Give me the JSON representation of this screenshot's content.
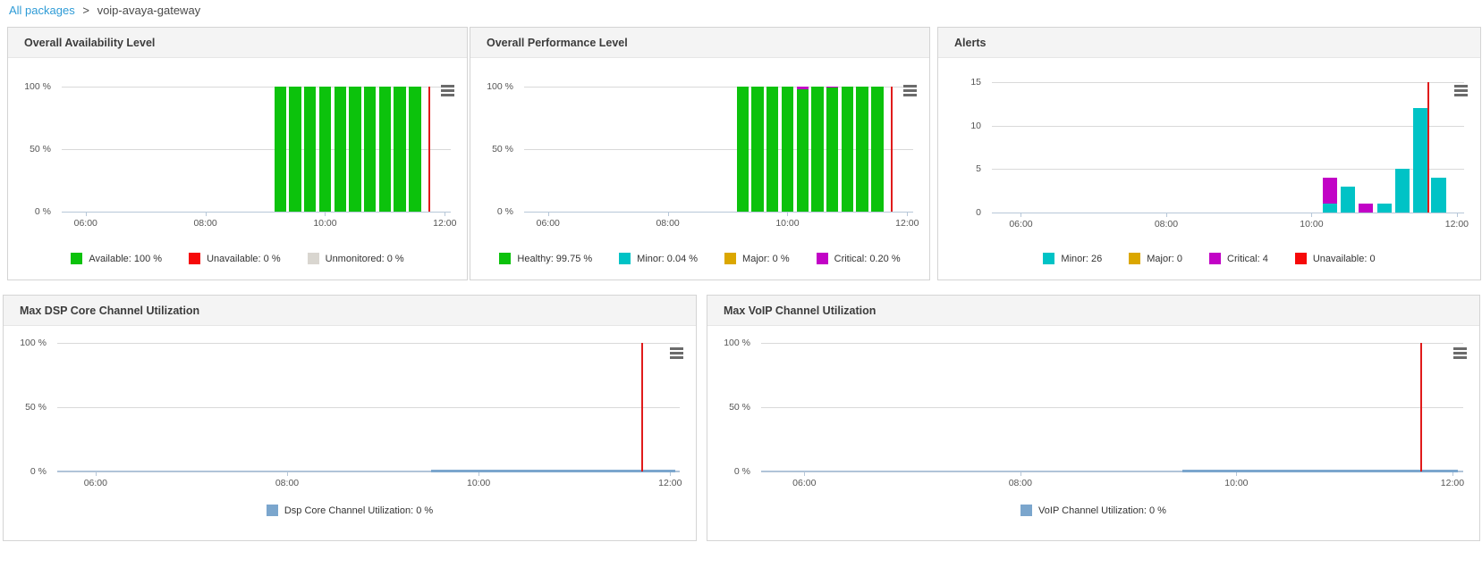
{
  "breadcrumb": {
    "link": "All packages",
    "separator": ">",
    "current": "voip-avaya-gateway"
  },
  "colors": {
    "available_green": "#0cc20c",
    "unavailable_red": "#f60909",
    "unmonitored_gray": "#d9d6d0",
    "minor_cyan": "#00c3c6",
    "major_gold": "#dba700",
    "critical_magenta": "#c203c6",
    "utilization_blue": "#7ba6cd",
    "utilization_blue_thin": "#aac1d8",
    "now_line_red": "#e01b1b",
    "axis_line": "#b7c7d8",
    "gridline": "#d9d9d9",
    "link_blue": "#2e9bd6"
  },
  "chart_data": [
    {
      "id": "overall-availability",
      "title": "Overall Availability Level",
      "type": "bar",
      "x_domain": [
        5.6,
        12.1
      ],
      "xticks": [
        {
          "t": 6,
          "label": "06:00"
        },
        {
          "t": 8,
          "label": "08:00"
        },
        {
          "t": 10,
          "label": "10:00"
        },
        {
          "t": 12,
          "label": "12:00"
        }
      ],
      "yticks": [
        {
          "v": 0,
          "label": "0 %"
        },
        {
          "v": 50,
          "label": "50 %"
        },
        {
          "v": 100,
          "label": "100 %"
        }
      ],
      "ymax": 100,
      "bar_slot_hours": 0.25,
      "now": 11.72,
      "bars": [
        {
          "time": "09:15",
          "t": 9.25,
          "segments": [
            {
              "color": "available_green",
              "value": 100
            }
          ]
        },
        {
          "time": "09:30",
          "t": 9.5,
          "segments": [
            {
              "color": "available_green",
              "value": 100
            }
          ]
        },
        {
          "time": "09:45",
          "t": 9.75,
          "segments": [
            {
              "color": "available_green",
              "value": 100
            }
          ]
        },
        {
          "time": "10:00",
          "t": 10.0,
          "segments": [
            {
              "color": "available_green",
              "value": 100
            }
          ]
        },
        {
          "time": "10:15",
          "t": 10.25,
          "segments": [
            {
              "color": "available_green",
              "value": 100
            }
          ]
        },
        {
          "time": "10:30",
          "t": 10.5,
          "segments": [
            {
              "color": "available_green",
              "value": 100
            }
          ]
        },
        {
          "time": "10:45",
          "t": 10.75,
          "segments": [
            {
              "color": "available_green",
              "value": 100
            }
          ]
        },
        {
          "time": "11:00",
          "t": 11.0,
          "segments": [
            {
              "color": "available_green",
              "value": 100
            }
          ]
        },
        {
          "time": "11:15",
          "t": 11.25,
          "segments": [
            {
              "color": "available_green",
              "value": 100
            }
          ]
        },
        {
          "time": "11:30",
          "t": 11.5,
          "segments": [
            {
              "color": "available_green",
              "value": 100
            }
          ]
        }
      ],
      "legend": [
        {
          "color": "available_green",
          "label": "Available: 100 %"
        },
        {
          "color": "unavailable_red",
          "label": "Unavailable: 0 %"
        },
        {
          "color": "unmonitored_gray",
          "label": "Unmonitored: 0 %"
        }
      ]
    },
    {
      "id": "overall-performance",
      "title": "Overall Performance Level",
      "type": "bar",
      "x_domain": [
        5.6,
        12.1
      ],
      "xticks": [
        {
          "t": 6,
          "label": "06:00"
        },
        {
          "t": 8,
          "label": "08:00"
        },
        {
          "t": 10,
          "label": "10:00"
        },
        {
          "t": 12,
          "label": "12:00"
        }
      ],
      "yticks": [
        {
          "v": 0,
          "label": "0 %"
        },
        {
          "v": 50,
          "label": "50 %"
        },
        {
          "v": 100,
          "label": "100 %"
        }
      ],
      "ymax": 100,
      "bar_slot_hours": 0.25,
      "now": 11.72,
      "bars": [
        {
          "time": "09:15",
          "t": 9.25,
          "segments": [
            {
              "color": "available_green",
              "value": 100
            }
          ]
        },
        {
          "time": "09:30",
          "t": 9.5,
          "segments": [
            {
              "color": "available_green",
              "value": 100
            }
          ]
        },
        {
          "time": "09:45",
          "t": 9.75,
          "segments": [
            {
              "color": "available_green",
              "value": 100
            }
          ]
        },
        {
          "time": "10:00",
          "t": 10.0,
          "segments": [
            {
              "color": "available_green",
              "value": 100
            }
          ]
        },
        {
          "time": "10:15",
          "t": 10.25,
          "segments": [
            {
              "color": "available_green",
              "value": 97.6
            },
            {
              "color": "critical_magenta",
              "value": 2.4
            }
          ]
        },
        {
          "time": "10:30",
          "t": 10.5,
          "segments": [
            {
              "color": "available_green",
              "value": 100
            }
          ]
        },
        {
          "time": "10:45",
          "t": 10.75,
          "segments": [
            {
              "color": "available_green",
              "value": 99
            },
            {
              "color": "critical_magenta",
              "value": 1
            }
          ]
        },
        {
          "time": "11:00",
          "t": 11.0,
          "segments": [
            {
              "color": "available_green",
              "value": 100
            }
          ]
        },
        {
          "time": "11:15",
          "t": 11.25,
          "segments": [
            {
              "color": "available_green",
              "value": 100
            }
          ]
        },
        {
          "time": "11:30",
          "t": 11.5,
          "segments": [
            {
              "color": "available_green",
              "value": 100
            }
          ]
        }
      ],
      "legend": [
        {
          "color": "available_green",
          "label": "Healthy: 99.75 %"
        },
        {
          "color": "minor_cyan",
          "label": "Minor: 0.04 %"
        },
        {
          "color": "major_gold",
          "label": "Major: 0 %"
        },
        {
          "color": "critical_magenta",
          "label": "Critical: 0.20 %"
        }
      ]
    },
    {
      "id": "alerts",
      "title": "Alerts",
      "type": "bar",
      "x_domain": [
        5.6,
        12.1
      ],
      "xticks": [
        {
          "t": 6,
          "label": "06:00"
        },
        {
          "t": 8,
          "label": "08:00"
        },
        {
          "t": 10,
          "label": "10:00"
        },
        {
          "t": 12,
          "label": "12:00"
        }
      ],
      "yticks": [
        {
          "v": 0,
          "label": "0"
        },
        {
          "v": 5,
          "label": "5"
        },
        {
          "v": 10,
          "label": "10"
        },
        {
          "v": 15,
          "label": "15"
        }
      ],
      "ymax": 15,
      "bar_slot_hours": 0.25,
      "now": 11.6,
      "bars": [
        {
          "time": "10:15",
          "t": 10.25,
          "segments": [
            {
              "color": "minor_cyan",
              "value": 1
            },
            {
              "color": "critical_magenta",
              "value": 3
            }
          ]
        },
        {
          "time": "10:30",
          "t": 10.5,
          "segments": [
            {
              "color": "minor_cyan",
              "value": 3
            }
          ]
        },
        {
          "time": "10:45",
          "t": 10.75,
          "segments": [
            {
              "color": "critical_magenta",
              "value": 1
            }
          ]
        },
        {
          "time": "11:00",
          "t": 11.0,
          "segments": [
            {
              "color": "minor_cyan",
              "value": 1
            }
          ]
        },
        {
          "time": "11:15",
          "t": 11.25,
          "segments": [
            {
              "color": "minor_cyan",
              "value": 5
            }
          ]
        },
        {
          "time": "11:30",
          "t": 11.5,
          "segments": [
            {
              "color": "minor_cyan",
              "value": 12
            }
          ]
        },
        {
          "time": "11:45",
          "t": 11.75,
          "segments": [
            {
              "color": "minor_cyan",
              "value": 4
            }
          ]
        }
      ],
      "legend": [
        {
          "color": "minor_cyan",
          "label": "Minor: 26"
        },
        {
          "color": "major_gold",
          "label": "Major: 0"
        },
        {
          "color": "critical_magenta",
          "label": "Critical: 4"
        },
        {
          "color": "unavailable_red",
          "label": "Unavailable: 0"
        }
      ]
    },
    {
      "id": "max-dsp-core-channel-utilization",
      "title": "Max DSP Core Channel Utilization",
      "type": "line",
      "x_domain": [
        5.6,
        12.1
      ],
      "xticks": [
        {
          "t": 6,
          "label": "06:00"
        },
        {
          "t": 8,
          "label": "08:00"
        },
        {
          "t": 10,
          "label": "10:00"
        },
        {
          "t": 12,
          "label": "12:00"
        }
      ],
      "yticks": [
        {
          "v": 0,
          "label": "0 %"
        },
        {
          "v": 50,
          "label": "50 %"
        },
        {
          "v": 100,
          "label": "100 %"
        }
      ],
      "ymax": 100,
      "now": 11.7,
      "line": {
        "color": "utilization_blue",
        "thin_color": "utilization_blue_thin",
        "value": 0,
        "bold_from": 9.5,
        "bold_to": 12.05
      },
      "legend": [
        {
          "color": "utilization_blue",
          "label": "Dsp Core Channel Utilization: 0 %"
        }
      ]
    },
    {
      "id": "max-voip-channel-utilization",
      "title": "Max VoIP Channel Utilization",
      "type": "line",
      "x_domain": [
        5.6,
        12.1
      ],
      "xticks": [
        {
          "t": 6,
          "label": "06:00"
        },
        {
          "t": 8,
          "label": "08:00"
        },
        {
          "t": 10,
          "label": "10:00"
        },
        {
          "t": 12,
          "label": "12:00"
        }
      ],
      "yticks": [
        {
          "v": 0,
          "label": "0 %"
        },
        {
          "v": 50,
          "label": "50 %"
        },
        {
          "v": 100,
          "label": "100 %"
        }
      ],
      "ymax": 100,
      "now": 11.7,
      "line": {
        "color": "utilization_blue",
        "thin_color": "utilization_blue_thin",
        "value": 0,
        "bold_from": 9.5,
        "bold_to": 12.05
      },
      "legend": [
        {
          "color": "utilization_blue",
          "label": "VoIP Channel Utilization: 0 %"
        }
      ]
    }
  ]
}
